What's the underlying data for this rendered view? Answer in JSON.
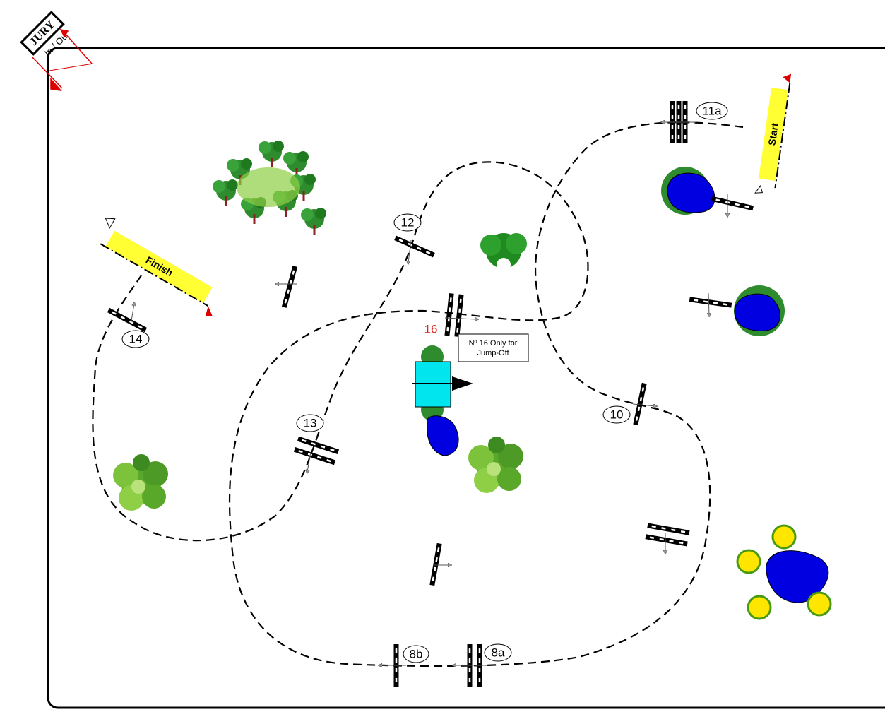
{
  "jury": {
    "label": "JURY",
    "gate": "In / Ou"
  },
  "start": "Start",
  "finish": "Finish",
  "obstacles": [
    {
      "number": "11a"
    },
    {
      "number": "12"
    },
    {
      "number": "14"
    },
    {
      "number": "16"
    },
    {
      "number": "10"
    },
    {
      "number": "13"
    },
    {
      "number": "8b"
    },
    {
      "number": "8a"
    }
  ],
  "note": {
    "lines": [
      "Nº 16 Only for",
      "Jump-Off"
    ]
  }
}
